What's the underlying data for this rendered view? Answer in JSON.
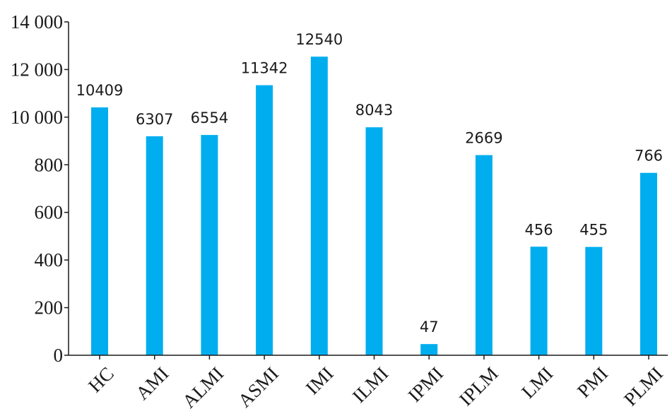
{
  "chart_data": {
    "type": "bar",
    "categories": [
      "HC",
      "AMI",
      "ALMI",
      "ASMI",
      "IMI",
      "ILMI",
      "IPMI",
      "IPLM",
      "LMI",
      "PMI",
      "PLMI"
    ],
    "values": [
      10409,
      6307,
      6554,
      11342,
      12540,
      8043,
      47,
      2669,
      456,
      455,
      766
    ],
    "data_labels": [
      "10409",
      "6307",
      "6554",
      "11342",
      "12540",
      "8043",
      "47",
      "2669",
      "456",
      "455",
      "766"
    ],
    "bar_levels": [
      10409,
      6307,
      6554,
      11342,
      12540,
      8043,
      47,
      2669,
      456,
      455,
      766
    ],
    "y_ticks": [
      0,
      200,
      400,
      600,
      800,
      10000,
      12000,
      14000
    ],
    "y_tick_labels": [
      "0",
      "200",
      "400",
      "600",
      "800",
      "10 000",
      "12 000",
      "14 000"
    ],
    "ylim": [
      0,
      14000
    ],
    "title": "",
    "xlabel": "",
    "ylabel": "",
    "grid": false,
    "legend": "none",
    "bar_color": "#00aeef",
    "text_color": "#1a1a1a"
  }
}
